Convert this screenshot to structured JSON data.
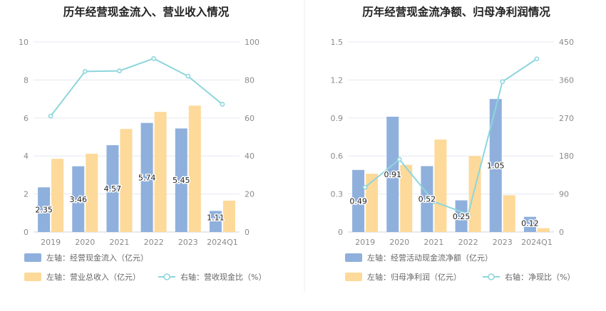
{
  "colors": {
    "bar_left": "#8fb0dc",
    "bar_right": "#fdd99a",
    "line": "#8dd6dc",
    "grid": "#e5e8f0",
    "divider": "#eeeeee"
  },
  "chart_data": [
    {
      "type": "bar",
      "title": "历年经营现金流入、营业收入情况",
      "categories": [
        "2019",
        "2020",
        "2021",
        "2022",
        "2023",
        "2024Q1"
      ],
      "left_axis": {
        "min": 0,
        "max": 10,
        "ticks": [
          "0",
          "2",
          "4",
          "6",
          "8",
          "10"
        ]
      },
      "right_axis": {
        "min": 0,
        "max": 100,
        "ticks": [
          "0",
          "20",
          "40",
          "60",
          "80",
          "100"
        ]
      },
      "grid": true,
      "legend_position": "bottom-left",
      "series": [
        {
          "name": "左轴：经营现金流入（亿元）",
          "type": "bar",
          "axis": "left",
          "values": [
            2.35,
            3.46,
            4.57,
            5.74,
            5.45,
            1.11
          ],
          "labels": [
            "2.35",
            "3.46",
            "4.57",
            "5.74",
            "5.45",
            "1.11"
          ]
        },
        {
          "name": "左轴：营业总收入（亿元）",
          "type": "bar",
          "axis": "left",
          "values": [
            3.85,
            4.12,
            5.42,
            6.32,
            6.65,
            1.65
          ]
        },
        {
          "name": "右轴：营收现金比（%）",
          "type": "line",
          "axis": "right",
          "values": [
            61,
            84.5,
            84.8,
            91.3,
            82,
            67.2
          ]
        }
      ]
    },
    {
      "type": "bar",
      "title": "历年经营现金流净额、归母净利润情况",
      "categories": [
        "2019",
        "2020",
        "2021",
        "2022",
        "2023",
        "2024Q1"
      ],
      "left_axis": {
        "min": 0,
        "max": 1.5,
        "ticks": [
          "0",
          "0.3",
          "0.6",
          "0.9",
          "1.2",
          "1.5"
        ]
      },
      "right_axis": {
        "min": 0,
        "max": 450,
        "ticks": [
          "0",
          "90",
          "180",
          "270",
          "360",
          "450"
        ]
      },
      "grid": true,
      "legend_position": "bottom-left",
      "series": [
        {
          "name": "左轴：经营活动现金流净额（亿元）",
          "type": "bar",
          "axis": "left",
          "values": [
            0.49,
            0.91,
            0.52,
            0.25,
            1.05,
            0.12
          ],
          "labels": [
            "0.49",
            "0.91",
            "0.52",
            "0.25",
            "1.05",
            "0.12"
          ]
        },
        {
          "name": "左轴：归母净利润（亿元）",
          "type": "bar",
          "axis": "left",
          "values": [
            0.46,
            0.53,
            0.73,
            0.6,
            0.29,
            0.03
          ]
        },
        {
          "name": "右轴：净现比（%）",
          "type": "line",
          "axis": "right",
          "values": [
            106,
            172,
            72,
            42,
            356,
            410
          ]
        }
      ]
    }
  ]
}
